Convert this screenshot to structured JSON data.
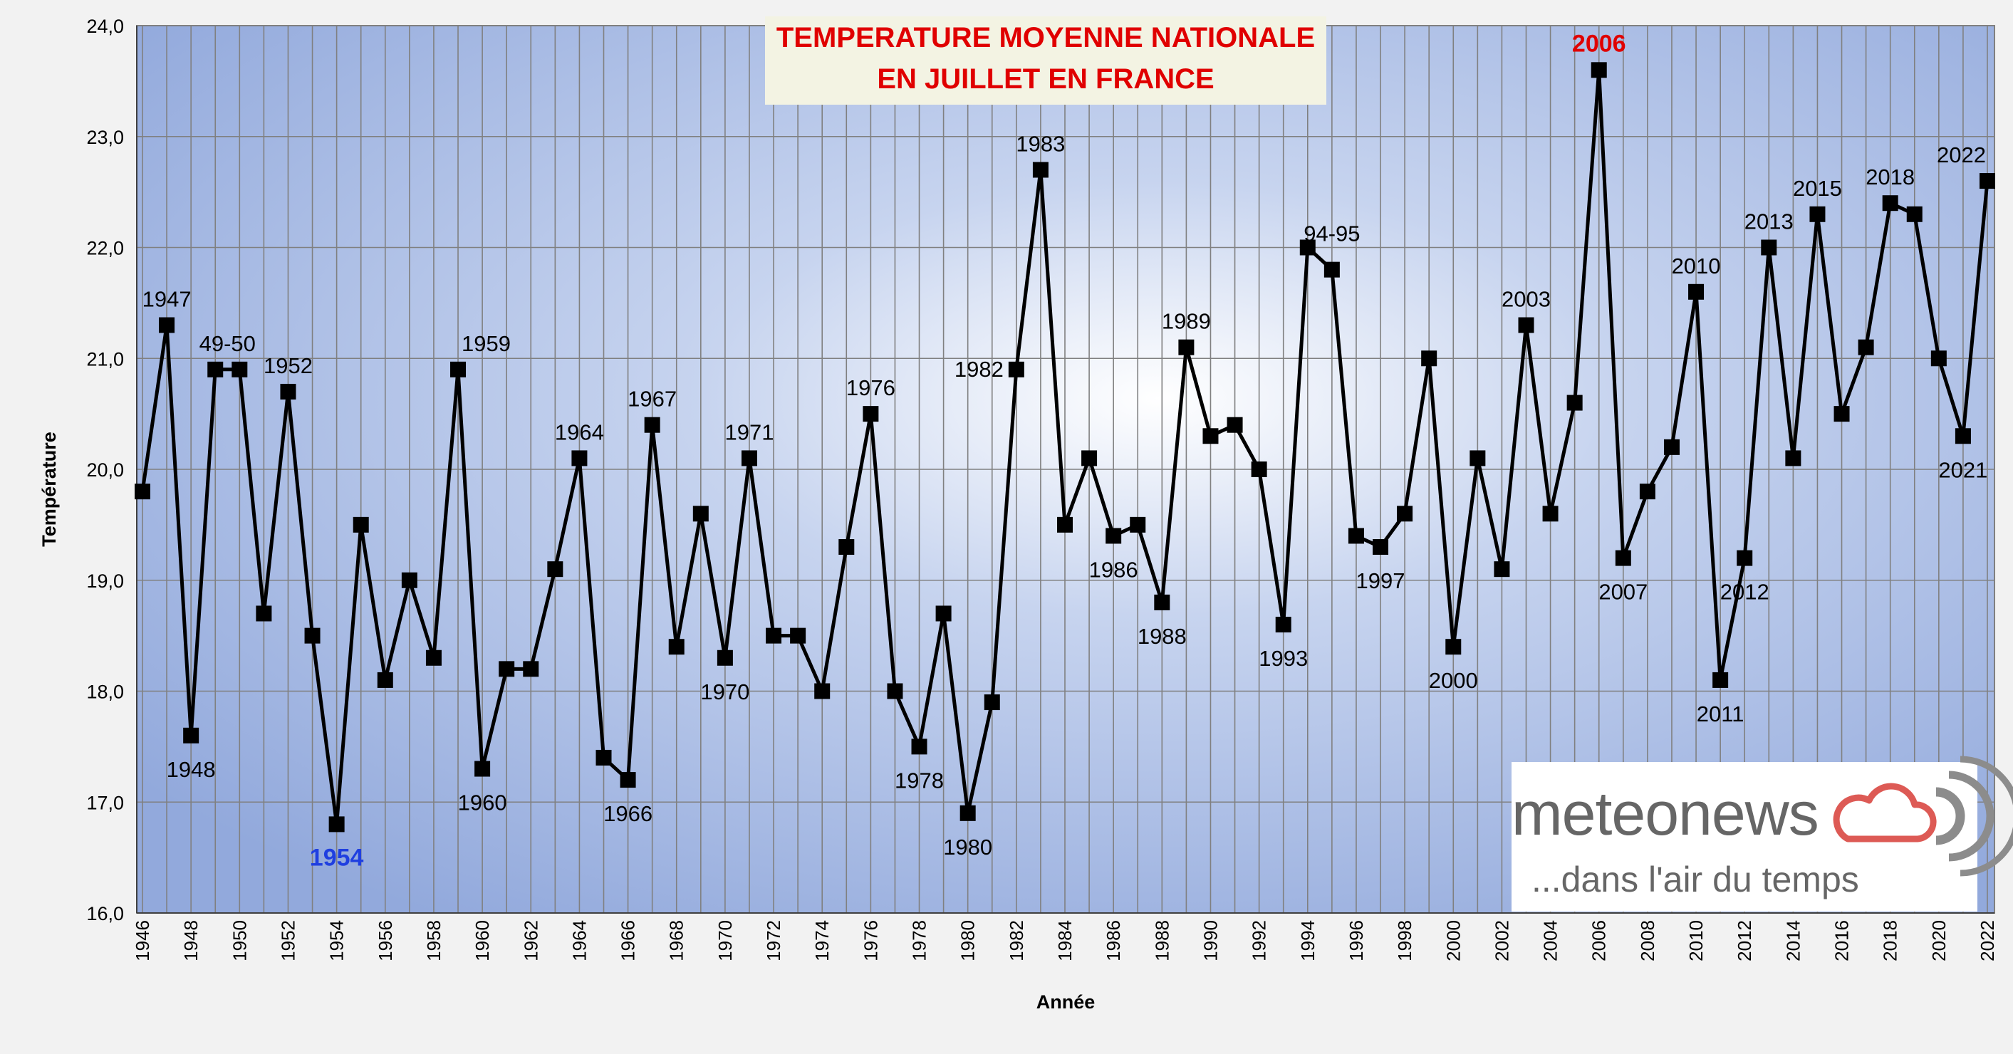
{
  "chart_data": {
    "type": "line",
    "title_lines": [
      "TEMPERATURE MOYENNE NATIONALE",
      "EN JUILLET EN FRANCE"
    ],
    "xlabel": "Année",
    "ylabel": "Température",
    "ylim": [
      16.0,
      24.0
    ],
    "yticks": [
      "16,0",
      "17,0",
      "18,0",
      "19,0",
      "20,0",
      "21,0",
      "22,0",
      "23,0",
      "24,0"
    ],
    "xticks": [
      "1946",
      "1948",
      "1950",
      "1952",
      "1954",
      "1956",
      "1958",
      "1960",
      "1962",
      "1964",
      "1966",
      "1968",
      "1970",
      "1972",
      "1974",
      "1976",
      "1978",
      "1980",
      "1982",
      "1984",
      "1986",
      "1988",
      "1990",
      "1992",
      "1994",
      "1996",
      "1998",
      "2000",
      "2002",
      "2004",
      "2006",
      "2008",
      "2010",
      "2012",
      "2014",
      "2016",
      "2018",
      "2020",
      "2022"
    ],
    "grid": true,
    "x": [
      1946,
      1947,
      1948,
      1949,
      1950,
      1951,
      1952,
      1953,
      1954,
      1955,
      1956,
      1957,
      1958,
      1959,
      1960,
      1961,
      1962,
      1963,
      1964,
      1965,
      1966,
      1967,
      1968,
      1969,
      1970,
      1971,
      1972,
      1973,
      1974,
      1975,
      1976,
      1977,
      1978,
      1979,
      1980,
      1981,
      1982,
      1983,
      1984,
      1985,
      1986,
      1987,
      1988,
      1989,
      1990,
      1991,
      1992,
      1993,
      1994,
      1995,
      1996,
      1997,
      1998,
      1999,
      2000,
      2001,
      2002,
      2003,
      2004,
      2005,
      2006,
      2007,
      2008,
      2009,
      2010,
      2011,
      2012,
      2013,
      2014,
      2015,
      2016,
      2017,
      2018,
      2019,
      2020,
      2021,
      2022
    ],
    "y": [
      19.8,
      21.3,
      17.6,
      20.9,
      20.9,
      18.7,
      20.7,
      18.5,
      16.8,
      19.5,
      18.1,
      19.0,
      18.3,
      20.9,
      17.3,
      18.2,
      18.2,
      19.1,
      20.1,
      17.4,
      17.2,
      20.4,
      18.4,
      19.6,
      18.3,
      20.1,
      18.5,
      18.5,
      18.0,
      19.3,
      20.5,
      18.0,
      17.5,
      18.7,
      16.9,
      17.9,
      20.9,
      22.7,
      19.5,
      20.1,
      19.4,
      19.5,
      18.8,
      21.1,
      20.3,
      20.4,
      20.0,
      18.6,
      22.0,
      21.8,
      19.4,
      19.3,
      19.6,
      21.0,
      18.4,
      20.1,
      19.1,
      21.3,
      19.6,
      20.6,
      23.6,
      19.2,
      19.8,
      20.2,
      21.6,
      18.1,
      19.2,
      22.0,
      20.1,
      22.3,
      20.5,
      21.1,
      22.4,
      22.3,
      21.0,
      20.3,
      22.6
    ],
    "annotations": [
      {
        "text": "1947",
        "year": 1947,
        "pos": "above",
        "color": "#000000"
      },
      {
        "text": "1948",
        "year": 1948,
        "pos": "below",
        "color": "#000000"
      },
      {
        "text": "49-50",
        "year": 1949.5,
        "pos": "above",
        "color": "#000000"
      },
      {
        "text": "1952",
        "year": 1952,
        "pos": "above",
        "color": "#000000"
      },
      {
        "text": "1954",
        "year": 1954,
        "pos": "below",
        "color": "#1f3fe0",
        "bold": true
      },
      {
        "text": "1959",
        "year": 1959,
        "pos": "above-right",
        "color": "#000000"
      },
      {
        "text": "1960",
        "year": 1960,
        "pos": "below",
        "color": "#000000"
      },
      {
        "text": "1964",
        "year": 1964,
        "pos": "above",
        "color": "#000000"
      },
      {
        "text": "1966",
        "year": 1966,
        "pos": "below",
        "color": "#000000"
      },
      {
        "text": "1967",
        "year": 1967,
        "pos": "above",
        "color": "#000000"
      },
      {
        "text": "1970",
        "year": 1970,
        "pos": "below",
        "color": "#000000"
      },
      {
        "text": "1971",
        "year": 1971,
        "pos": "above",
        "color": "#000000"
      },
      {
        "text": "1976",
        "year": 1976,
        "pos": "above",
        "color": "#000000"
      },
      {
        "text": "1978",
        "year": 1978,
        "pos": "below",
        "color": "#000000"
      },
      {
        "text": "1980",
        "year": 1980,
        "pos": "below",
        "color": "#000000"
      },
      {
        "text": "1982",
        "year": 1982,
        "pos": "left",
        "color": "#000000"
      },
      {
        "text": "1983",
        "year": 1983,
        "pos": "above",
        "color": "#000000"
      },
      {
        "text": "1986",
        "year": 1986,
        "pos": "below",
        "color": "#000000"
      },
      {
        "text": "1988",
        "year": 1988,
        "pos": "below",
        "color": "#000000"
      },
      {
        "text": "1989",
        "year": 1989,
        "pos": "above",
        "color": "#000000"
      },
      {
        "text": "1993",
        "year": 1993,
        "pos": "below",
        "color": "#000000"
      },
      {
        "text": "94-95",
        "year": 1995,
        "pos": "above-high",
        "color": "#000000"
      },
      {
        "text": "1997",
        "year": 1997,
        "pos": "below",
        "color": "#000000"
      },
      {
        "text": "2000",
        "year": 2000,
        "pos": "below",
        "color": "#000000"
      },
      {
        "text": "2003",
        "year": 2003,
        "pos": "above",
        "color": "#000000"
      },
      {
        "text": "2006",
        "year": 2006,
        "pos": "above",
        "color": "#e00000",
        "bold": true
      },
      {
        "text": "2007",
        "year": 2007,
        "pos": "below",
        "color": "#000000"
      },
      {
        "text": "2010",
        "year": 2010,
        "pos": "above",
        "color": "#000000"
      },
      {
        "text": "2011",
        "year": 2011,
        "pos": "below",
        "color": "#000000"
      },
      {
        "text": "2012",
        "year": 2012,
        "pos": "below",
        "color": "#000000"
      },
      {
        "text": "2013",
        "year": 2013,
        "pos": "above",
        "color": "#000000"
      },
      {
        "text": "2015",
        "year": 2015,
        "pos": "above",
        "color": "#000000"
      },
      {
        "text": "2018",
        "year": 2018,
        "pos": "above",
        "color": "#000000"
      },
      {
        "text": "2021",
        "year": 2021,
        "pos": "below",
        "color": "#000000"
      },
      {
        "text": "2022",
        "year": 2022,
        "pos": "above-left",
        "color": "#000000"
      }
    ],
    "colors": {
      "plot_top": "#92a9dc",
      "plot_center": "#ffffff",
      "line": "#000000",
      "grid": "#808080",
      "title_text": "#e00000",
      "title_bg": "#f3f3e3"
    }
  },
  "logo": {
    "name": "meteonews",
    "tagline": "...dans l'air du temps",
    "text_color": "#666666",
    "cloud_color": "#dd5a55"
  }
}
